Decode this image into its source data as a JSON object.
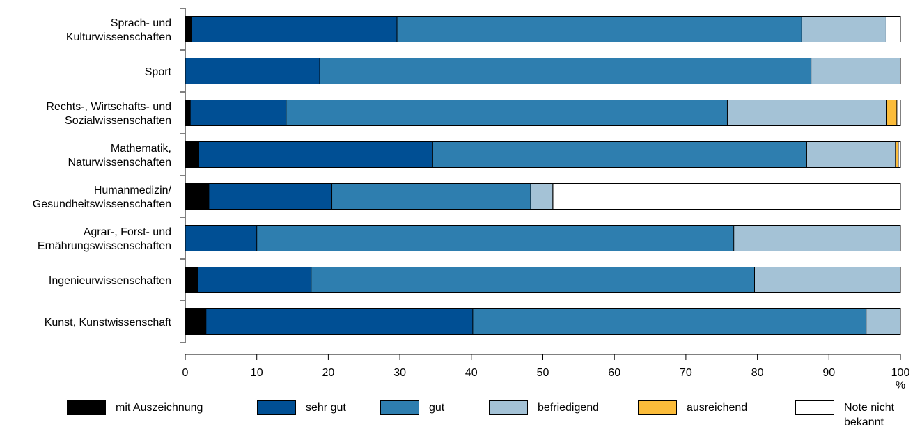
{
  "chart_data": {
    "type": "bar",
    "orientation": "horizontal",
    "stacked": true,
    "categories": [
      "Sprach- und\nKulturwissenschaften",
      "Sport",
      "Rechts-, Wirtschafts- und\nSozialwissenschaften",
      "Mathematik,\nNaturwissenschaften",
      "Humanmedizin/\nGesundheitswissenschaften",
      "Agrar-, Forst- und\nErnährungswissenschaften",
      "Ingenieurwissenschaften",
      "Kunst, Kunstwissenschaft"
    ],
    "series": [
      {
        "name": "mit Auszeichnung",
        "color": "#000000",
        "values": [
          0.9,
          0.0,
          0.7,
          1.9,
          3.3,
          0.0,
          1.8,
          2.9
        ]
      },
      {
        "name": "sehr gut",
        "color": "#004f94",
        "values": [
          28.7,
          18.8,
          13.4,
          32.7,
          17.2,
          10.0,
          15.8,
          37.3
        ]
      },
      {
        "name": "gut",
        "color": "#2e7eaf",
        "values": [
          56.6,
          68.7,
          61.7,
          52.3,
          27.8,
          66.7,
          62.0,
          55.0
        ]
      },
      {
        "name": "befriedigend",
        "color": "#a4c2d6",
        "values": [
          11.8,
          12.5,
          22.3,
          12.4,
          3.1,
          23.3,
          20.4,
          4.8
        ]
      },
      {
        "name": "ausreichend",
        "color": "#fbbc3a",
        "values": [
          0.0,
          0.0,
          1.4,
          0.4,
          0.0,
          0.0,
          0.0,
          0.0
        ]
      },
      {
        "name": "Note nicht\nbekannt",
        "color": "#ffffff",
        "values": [
          2.0,
          0.0,
          0.5,
          0.3,
          48.6,
          0.0,
          0.0,
          0.0
        ]
      }
    ],
    "xlim": [
      0,
      100
    ],
    "xticks": [
      "0",
      "10",
      "20",
      "30",
      "40",
      "50",
      "60",
      "70",
      "80",
      "90",
      "100"
    ],
    "xunit": "%",
    "grid": false,
    "legend_position": "bottom"
  }
}
